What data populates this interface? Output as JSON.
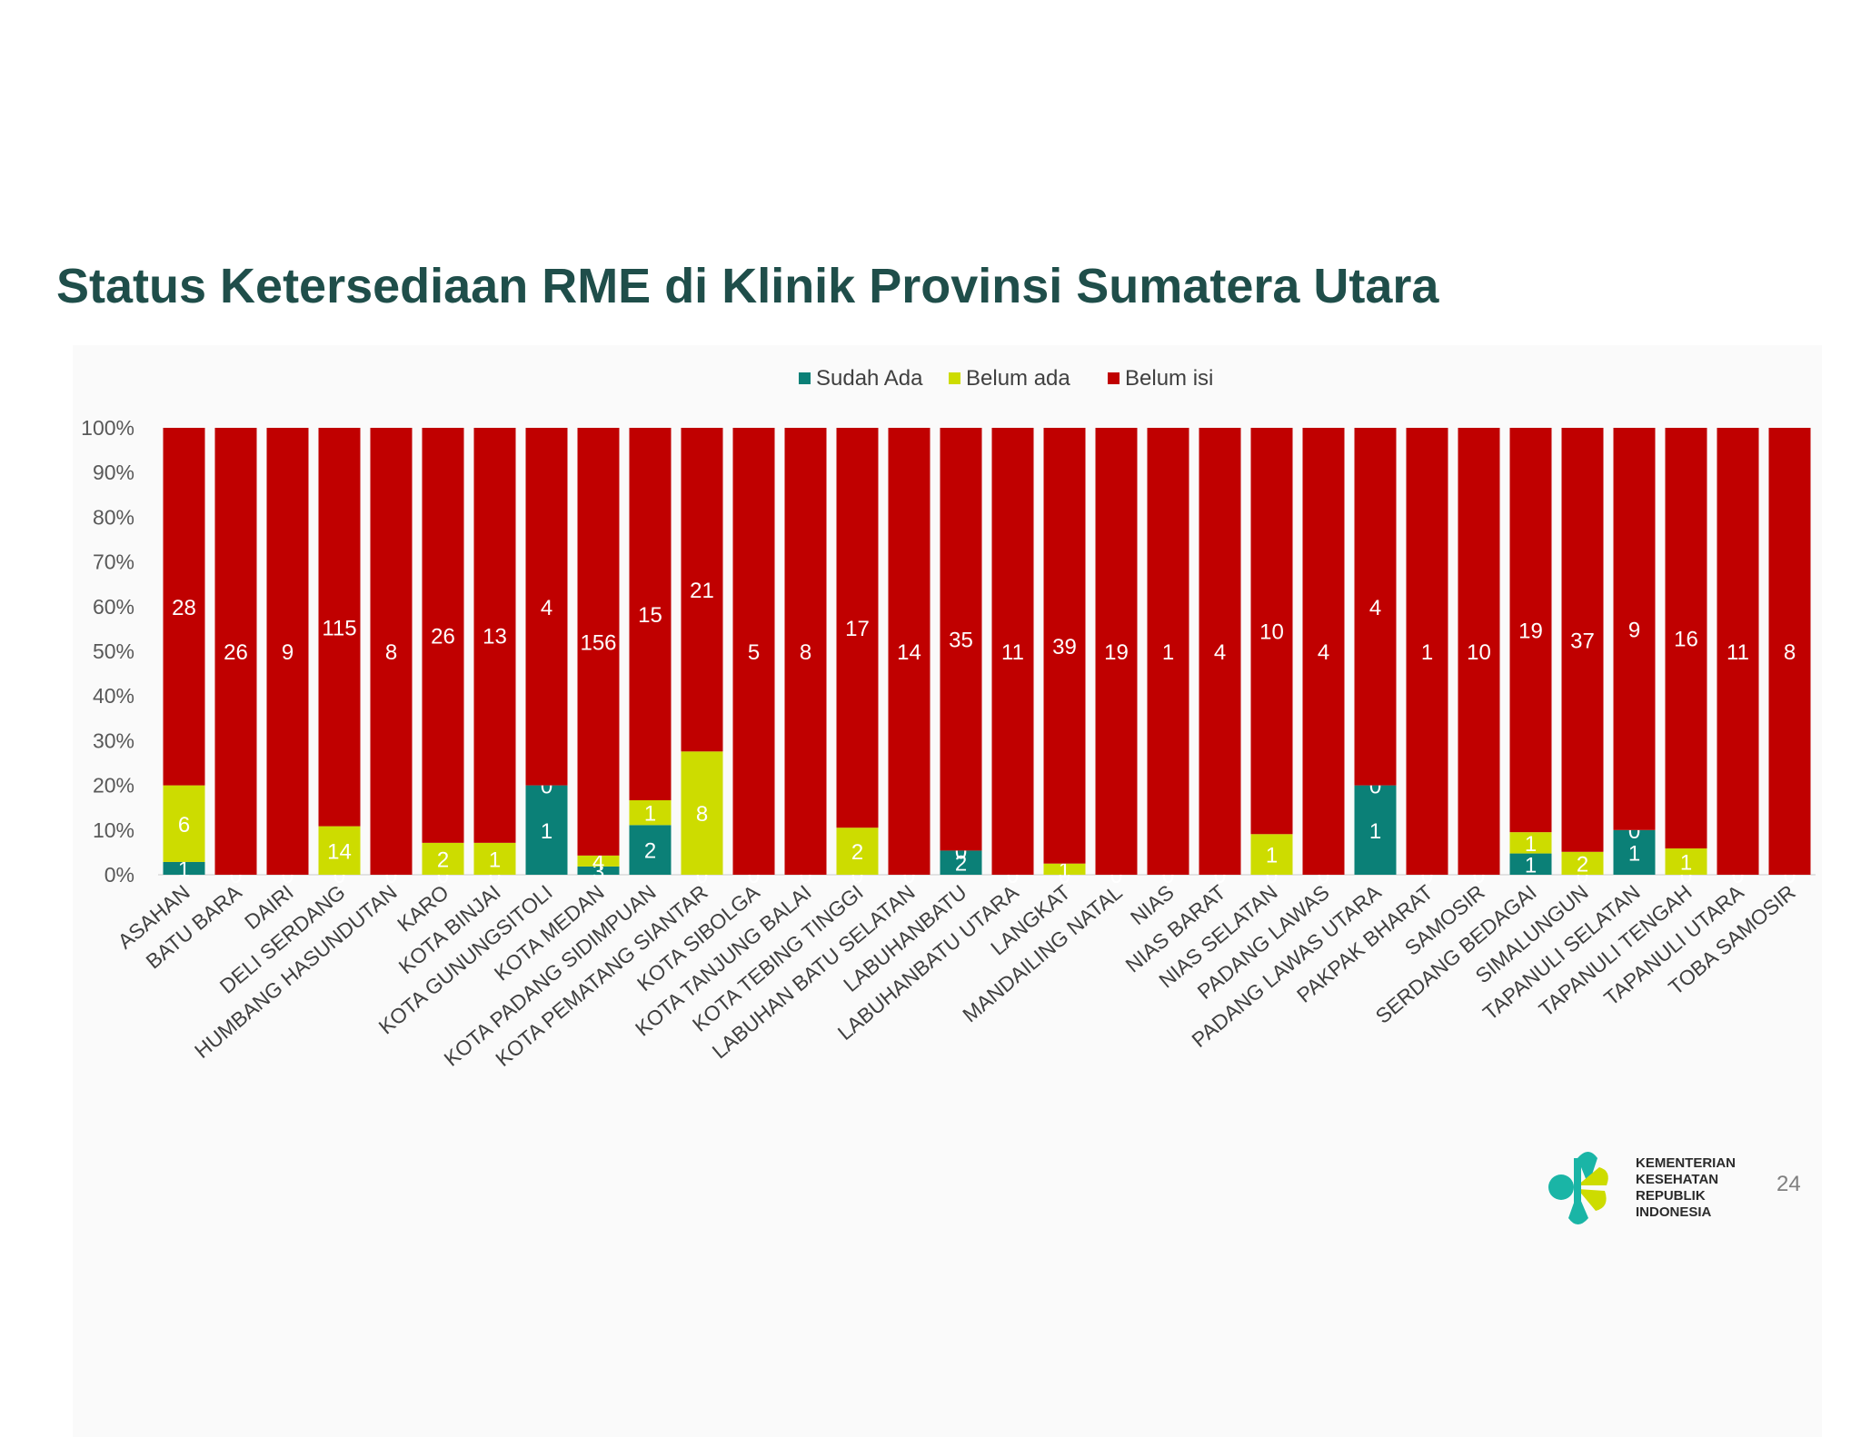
{
  "slide": {
    "title": "Status Ketersediaan RME di Klinik Provinsi Sumatera Utara",
    "page_number": "24",
    "logo_lines": [
      "KEMENTERIAN",
      "KESEHATAN",
      "REPUBLIK",
      "INDONESIA"
    ],
    "logo_icon": "kemenkes-logo-icon"
  },
  "chart_data": {
    "type": "bar",
    "stacked": "percent",
    "title": "",
    "xlabel": "",
    "ylabel": "",
    "ylim": [
      0,
      100
    ],
    "y_ticks": [
      "0%",
      "10%",
      "20%",
      "30%",
      "40%",
      "50%",
      "60%",
      "70%",
      "80%",
      "90%",
      "100%"
    ],
    "grid": false,
    "legend_position": "top",
    "categories": [
      "ASAHAN",
      "BATU BARA",
      "DAIRI",
      "DELI SERDANG",
      "HUMBANG HASUNDUTAN",
      "KARO",
      "KOTA BINJAI",
      "KOTA GUNUNGSITOLI",
      "KOTA MEDAN",
      "KOTA PADANG SIDIMPUAN",
      "KOTA PEMATANG SIANTAR",
      "KOTA SIBOLGA",
      "KOTA TANJUNG BALAI",
      "KOTA TEBING TINGGI",
      "LABUHAN BATU SELATAN",
      "LABUHANBATU",
      "LABUHANBATU UTARA",
      "LANGKAT",
      "MANDAILING NATAL",
      "NIAS",
      "NIAS BARAT",
      "NIAS SELATAN",
      "PADANG LAWAS",
      "PADANG LAWAS UTARA",
      "PAKPAK BHARAT",
      "SAMOSIR",
      "SERDANG BEDAGAI",
      "SIMALUNGUN",
      "TAPANULI SELATAN",
      "TAPANULI TENGAH",
      "TAPANULI UTARA",
      "TOBA SAMOSIR"
    ],
    "series": [
      {
        "name": "Sudah Ada",
        "color": "#0b8077",
        "values": [
          1,
          0,
          0,
          0,
          0,
          0,
          0,
          1,
          3,
          2,
          0,
          0,
          0,
          0,
          0,
          2,
          0,
          0,
          0,
          0,
          0,
          0,
          0,
          1,
          0,
          0,
          1,
          0,
          1,
          0,
          0,
          0
        ]
      },
      {
        "name": "Belum ada",
        "color": "#cddc00",
        "values": [
          6,
          0,
          0,
          14,
          0,
          2,
          1,
          0,
          4,
          1,
          8,
          0,
          0,
          2,
          0,
          0,
          0,
          1,
          0,
          0,
          0,
          1,
          0,
          0,
          0,
          0,
          1,
          2,
          0,
          1,
          0,
          0
        ]
      },
      {
        "name": "Belum isi",
        "color": "#c00000",
        "values": [
          28,
          26,
          9,
          115,
          8,
          26,
          13,
          4,
          156,
          15,
          21,
          5,
          8,
          17,
          14,
          35,
          11,
          39,
          19,
          1,
          4,
          10,
          4,
          4,
          1,
          10,
          19,
          37,
          9,
          16,
          11,
          8
        ]
      }
    ]
  }
}
